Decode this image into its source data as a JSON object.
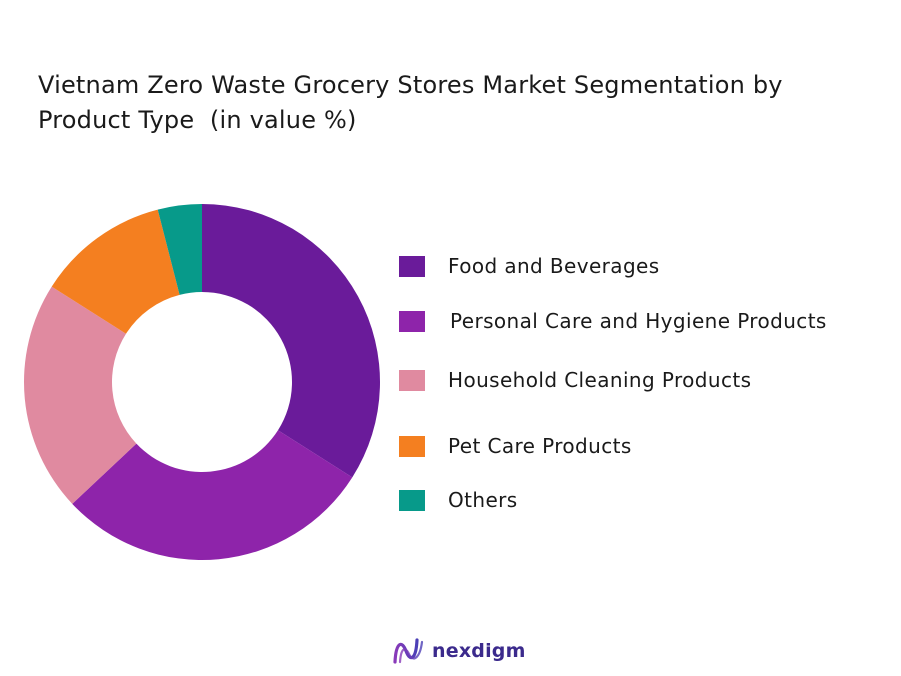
{
  "chart_data": {
    "type": "pie",
    "title_line1": "Vietnam Zero Waste Grocery Stores Market Segmentation by",
    "title_line2": "Product Type  (in value %)",
    "categories": [
      "Food and Beverages",
      "Personal Care and Hygiene Products",
      "Household Cleaning Products",
      "Pet Care Products",
      "Others"
    ],
    "values": [
      34,
      29,
      21,
      12,
      4
    ],
    "colors": [
      "#6a1b9a",
      "#8e24aa",
      "#e08aa0",
      "#f47f20",
      "#079a8a"
    ],
    "donut": true,
    "legend": "right"
  },
  "brand": {
    "name": "nexdigm",
    "color": "#3b2a8c"
  }
}
